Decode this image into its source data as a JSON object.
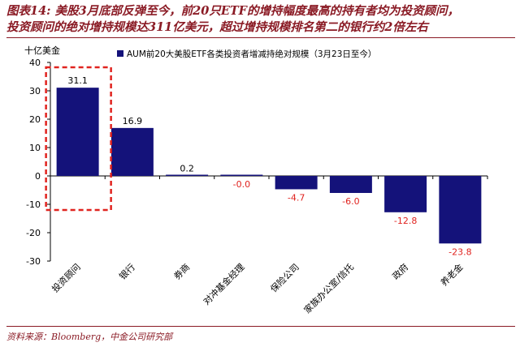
{
  "figure": {
    "title_line1": "图表14: 美股3月底部反弹至今，前20只ETF的增持幅度最高的持有者均为投资顾问，",
    "title_line2": "投资顾问的绝对增持规模达311亿美元，超过增持规模排名第二的银行约2倍左右",
    "source": "资料来源：Bloomberg，中金公司研究部"
  },
  "chart_data": {
    "type": "bar",
    "ylabel": "十亿美金",
    "ylim": [
      -30,
      40
    ],
    "yticks": [
      40,
      30,
      20,
      10,
      0,
      -10,
      -20,
      -30
    ],
    "categories": [
      "投资顾问",
      "银行",
      "券商",
      "对冲基金经理",
      "保险公司",
      "家族办公室/信托",
      "政府",
      "养老金"
    ],
    "series": [
      {
        "name": "AUM前20大美股ETF各类投资者增减持绝对规模（3月23日至今）",
        "values": [
          31.1,
          16.9,
          0.2,
          -0.0,
          -4.7,
          -6.0,
          -12.8,
          -23.8
        ],
        "labels": [
          "31.1",
          "16.9",
          "0.2",
          "-0.0",
          "-4.7",
          "-6.0",
          "-12.8",
          "-23.8"
        ]
      }
    ],
    "legend_position": "top-center",
    "grid": false,
    "highlight_category": "投资顾问",
    "colors": {
      "bar": "#14127a",
      "positive_label": "#000000",
      "negative_label": "#e0231f",
      "highlight_box": "#e0231f",
      "title": "#8a1a24"
    }
  }
}
